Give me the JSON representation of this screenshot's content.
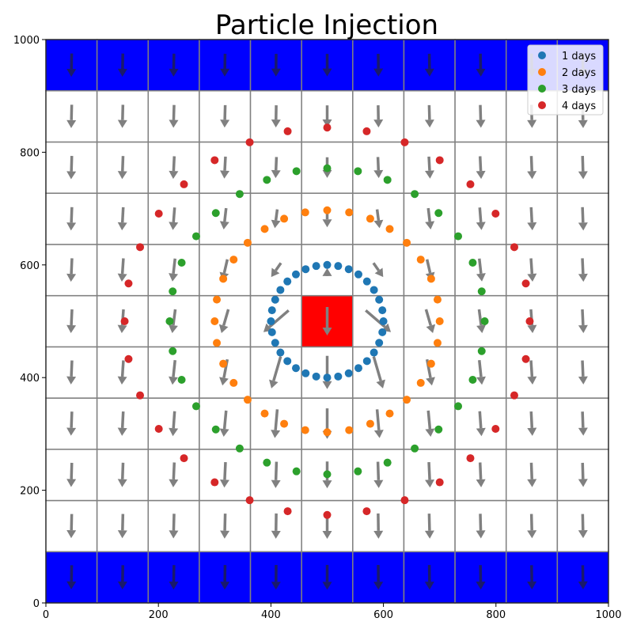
{
  "chart_data": {
    "type": "scatter",
    "title": "Particle Injection",
    "xlabel": "",
    "ylabel": "",
    "xlim": [
      0,
      1000
    ],
    "ylim": [
      0,
      1000
    ],
    "xticks": [
      0,
      200,
      400,
      600,
      800,
      1000
    ],
    "yticks": [
      0,
      200,
      400,
      600,
      800,
      1000
    ],
    "grid_divisions": 11,
    "legend_position": "top-right",
    "colors": {
      "boundary": "#0000ff",
      "source": "#ff0000",
      "grid": "#808080",
      "arrow": "#808080",
      "boundary_arrow": "#1a1a6a"
    },
    "boundary_rows": [
      0,
      10
    ],
    "source_cell": [
      5,
      5
    ],
    "series": [
      {
        "name": "1 days",
        "color": "#1f77b4",
        "radius": 100,
        "count": 32
      },
      {
        "name": "2 days",
        "color": "#ff7f0e",
        "radius": 200,
        "count": 32
      },
      {
        "name": "3 days",
        "color": "#2ca02c",
        "radius": 280,
        "count": 32
      },
      {
        "name": "4 days",
        "color": "#d62728",
        "radius": 360,
        "count": 32
      }
    ],
    "center": [
      500,
      500
    ]
  }
}
